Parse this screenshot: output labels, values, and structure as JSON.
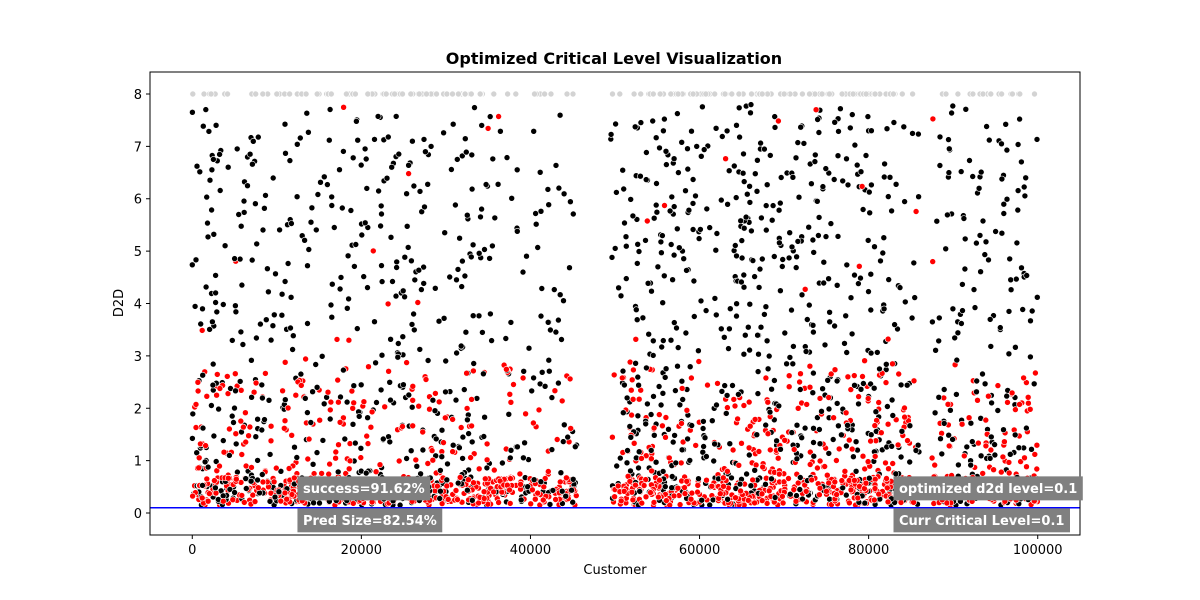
{
  "chart_data": {
    "type": "scatter",
    "title": "Optimized Critical Level Visualization",
    "xlabel": "Customer",
    "ylabel": "D2D",
    "xlim": [
      -5000,
      105000
    ],
    "ylim": [
      -0.42,
      8.42
    ],
    "x_ticks": [
      0,
      20000,
      40000,
      60000,
      80000,
      100000
    ],
    "y_ticks": [
      0,
      1,
      2,
      3,
      4,
      5,
      6,
      7,
      8
    ],
    "grid": false,
    "legend": "none",
    "x_range": [
      0,
      100000
    ],
    "gaps": [
      [
        45500,
        49500
      ],
      [
        86000,
        87500
      ]
    ],
    "critical_level": 0.1,
    "colors": {
      "above": "#000000",
      "below": "#ff0000",
      "capped": "#d3d3d3",
      "critical_line": "#0000ff",
      "point_edge": "#ffffff",
      "annotation_box": "#808080"
    },
    "annotations": [
      {
        "id": "success",
        "text": "success=91.62%",
        "anchor": "left",
        "x": 12500,
        "y": 0.48
      },
      {
        "id": "pred-size",
        "text": "Pred Size=82.54%",
        "anchor": "left",
        "x": 12500,
        "y": -0.13
      },
      {
        "id": "optimized-level",
        "text": "optimized d2d level=0.1",
        "anchor": "left",
        "x": 83000,
        "y": 0.48
      },
      {
        "id": "curr-critical",
        "text": "Curr Critical Level=0.1",
        "anchor": "left",
        "x": 83000,
        "y": -0.13
      }
    ]
  }
}
